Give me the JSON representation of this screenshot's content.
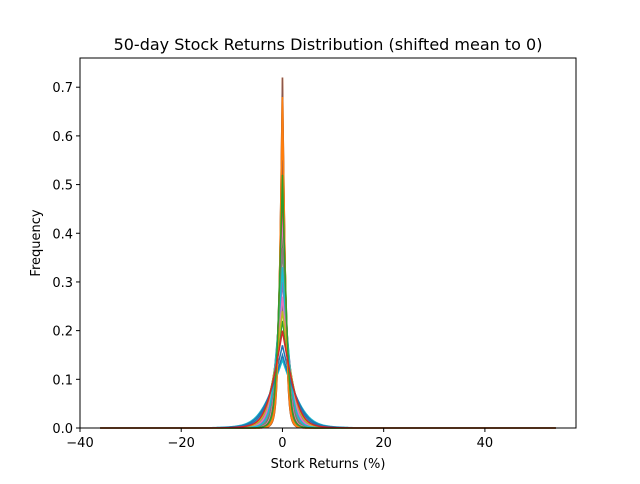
{
  "chart_data": {
    "type": "line",
    "title": "50-day Stock Returns Distribution (shifted mean to 0)",
    "xlabel": "Stork Returns (%)",
    "ylabel": "Frequency",
    "xlim": [
      -40,
      58
    ],
    "ylim": [
      0,
      0.76
    ],
    "xticks": [
      -40,
      -20,
      0,
      20,
      40
    ],
    "xtick_labels": [
      "−40",
      "−20",
      "0",
      "20",
      "40"
    ],
    "yticks": [
      0.0,
      0.1,
      0.2,
      0.3,
      0.4,
      0.5,
      0.6,
      0.7
    ],
    "ytick_labels": [
      "0.0",
      "0.1",
      "0.2",
      "0.3",
      "0.4",
      "0.5",
      "0.6",
      "0.7"
    ],
    "grid": false,
    "legend": "none",
    "x_support": [
      -36,
      54
    ],
    "series": [
      {
        "color": "#1f77b4",
        "peak": 0.33,
        "width": 1.3
      },
      {
        "color": "#ff7f0e",
        "peak": 0.72,
        "width": 0.55
      },
      {
        "color": "#2ca02c",
        "peak": 0.4,
        "width": 1.0
      },
      {
        "color": "#d62728",
        "peak": 0.61,
        "width": 0.65
      },
      {
        "color": "#9467bd",
        "peak": 0.26,
        "width": 1.6
      },
      {
        "color": "#8c564b",
        "peak": 0.72,
        "width": 0.55
      },
      {
        "color": "#e377c2",
        "peak": 0.44,
        "width": 0.9
      },
      {
        "color": "#7f7f7f",
        "peak": 0.25,
        "width": 1.7
      },
      {
        "color": "#bcbd22",
        "peak": 0.59,
        "width": 0.7
      },
      {
        "color": "#17becf",
        "peak": 0.14,
        "width": 2.8
      },
      {
        "color": "#1f77b4",
        "peak": 0.17,
        "width": 2.3
      },
      {
        "color": "#ff7f0e",
        "peak": 0.63,
        "width": 0.62
      },
      {
        "color": "#2ca02c",
        "peak": 0.22,
        "width": 1.9
      },
      {
        "color": "#d62728",
        "peak": 0.5,
        "width": 0.8
      },
      {
        "color": "#9467bd",
        "peak": 0.3,
        "width": 1.4
      },
      {
        "color": "#8c564b",
        "peak": 0.55,
        "width": 0.75
      },
      {
        "color": "#e377c2",
        "peak": 0.27,
        "width": 1.5
      },
      {
        "color": "#7f7f7f",
        "peak": 0.37,
        "width": 1.1
      },
      {
        "color": "#bcbd22",
        "peak": 0.24,
        "width": 1.75
      },
      {
        "color": "#17becf",
        "peak": 0.33,
        "width": 1.25
      },
      {
        "color": "#1f77b4",
        "peak": 0.15,
        "width": 2.6
      },
      {
        "color": "#ff7f0e",
        "peak": 0.68,
        "width": 0.58
      },
      {
        "color": "#2ca02c",
        "peak": 0.52,
        "width": 0.78
      },
      {
        "color": "#d62728",
        "peak": 0.2,
        "width": 2.0
      }
    ]
  }
}
